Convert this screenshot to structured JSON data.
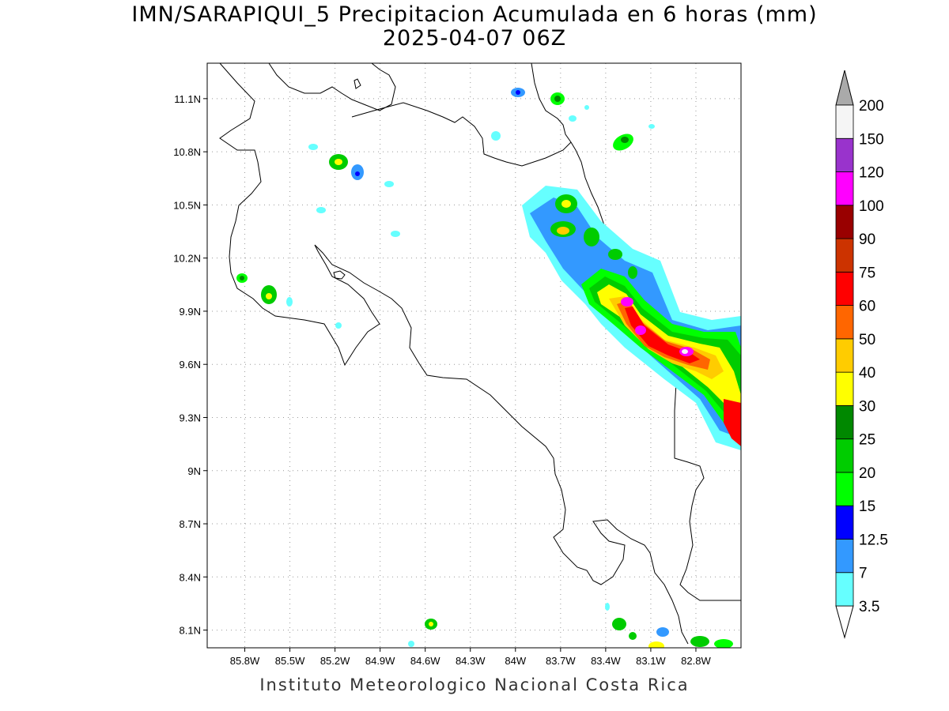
{
  "title": "IMN/SARAPIQUI_5 Precipitacion Acumulada en 6 horas (mm)",
  "subtitle": "2025-04-07 06Z",
  "footer": "Instituto Meteorologico Nacional Costa Rica",
  "map": {
    "lon_range": [
      -86.05,
      -82.5
    ],
    "lat_range": [
      8.0,
      11.3
    ],
    "lon_ticks": [
      {
        "value": -85.8,
        "label": "85.8W"
      },
      {
        "value": -85.5,
        "label": "85.5W"
      },
      {
        "value": -85.2,
        "label": "85.2W"
      },
      {
        "value": -84.9,
        "label": "84.9W"
      },
      {
        "value": -84.6,
        "label": "84.6W"
      },
      {
        "value": -84.3,
        "label": "84.3W"
      },
      {
        "value": -84.0,
        "label": "84W"
      },
      {
        "value": -83.7,
        "label": "83.7W"
      },
      {
        "value": -83.4,
        "label": "83.4W"
      },
      {
        "value": -83.1,
        "label": "83.1W"
      },
      {
        "value": -82.8,
        "label": "82.8W"
      }
    ],
    "lat_ticks": [
      {
        "value": 11.1,
        "label": "11.1N"
      },
      {
        "value": 10.8,
        "label": "10.8N"
      },
      {
        "value": 10.5,
        "label": "10.5N"
      },
      {
        "value": 10.2,
        "label": "10.2N"
      },
      {
        "value": 9.9,
        "label": "9.9N"
      },
      {
        "value": 9.6,
        "label": "9.6N"
      },
      {
        "value": 9.3,
        "label": "9.3N"
      },
      {
        "value": 9.0,
        "label": "9N"
      },
      {
        "value": 8.7,
        "label": "8.7N"
      },
      {
        "value": 8.4,
        "label": "8.4N"
      },
      {
        "value": 8.1,
        "label": "8.1N"
      }
    ],
    "grid": true
  },
  "colorbar": {
    "levels": [
      {
        "label": "3.5",
        "color": "#66ffff"
      },
      {
        "label": "7",
        "color": "#3399ff"
      },
      {
        "label": "12.5",
        "color": "#0000ff"
      },
      {
        "label": "15",
        "color": "#00ff00"
      },
      {
        "label": "20",
        "color": "#00cc00"
      },
      {
        "label": "25",
        "color": "#008800"
      },
      {
        "label": "30",
        "color": "#ffff00"
      },
      {
        "label": "40",
        "color": "#ffcc00"
      },
      {
        "label": "50",
        "color": "#ff6600"
      },
      {
        "label": "60",
        "color": "#ff0000"
      },
      {
        "label": "75",
        "color": "#cc3300"
      },
      {
        "label": "90",
        "color": "#990000"
      },
      {
        "label": "100",
        "color": "#ff00ff"
      },
      {
        "label": "120",
        "color": "#9933cc"
      },
      {
        "label": "150",
        "color": "#f5f5f5"
      },
      {
        "label": "200",
        "color": "#aaaaaa"
      }
    ]
  }
}
